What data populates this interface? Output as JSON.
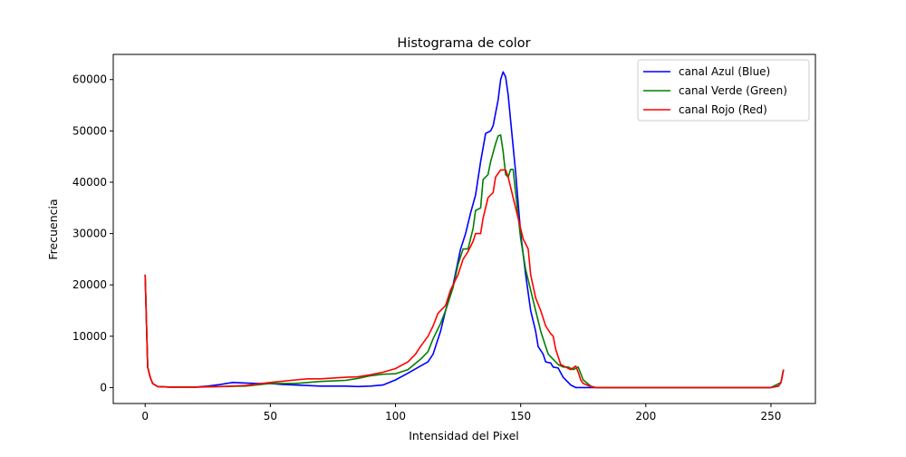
{
  "chart_data": {
    "type": "line",
    "title": "Histograma de color",
    "xlabel": "Intensidad del Pixel",
    "ylabel": "Frecuencia",
    "xlim": [
      -12.75,
      267.75
    ],
    "ylim": [
      -3100,
      64900
    ],
    "xticks": [
      0,
      50,
      100,
      150,
      200,
      250
    ],
    "yticks": [
      0,
      10000,
      20000,
      30000,
      40000,
      50000,
      60000
    ],
    "grid": false,
    "legend_position": "top-right",
    "series": [
      {
        "name": "canal Azul (Blue)",
        "color": "#0000ff",
        "points": [
          [
            0,
            22000
          ],
          [
            1,
            4000
          ],
          [
            2,
            2000
          ],
          [
            3,
            800
          ],
          [
            5,
            200
          ],
          [
            10,
            100
          ],
          [
            20,
            100
          ],
          [
            25,
            300
          ],
          [
            30,
            600
          ],
          [
            35,
            1000
          ],
          [
            40,
            900
          ],
          [
            45,
            800
          ],
          [
            50,
            800
          ],
          [
            55,
            600
          ],
          [
            60,
            500
          ],
          [
            65,
            400
          ],
          [
            70,
            300
          ],
          [
            80,
            300
          ],
          [
            85,
            200
          ],
          [
            90,
            300
          ],
          [
            95,
            500
          ],
          [
            100,
            1500
          ],
          [
            105,
            2800
          ],
          [
            110,
            4200
          ],
          [
            113,
            5000
          ],
          [
            115,
            6500
          ],
          [
            118,
            11000
          ],
          [
            120,
            15000
          ],
          [
            123,
            20000
          ],
          [
            126,
            27000
          ],
          [
            128,
            30000
          ],
          [
            130,
            34000
          ],
          [
            132,
            37500
          ],
          [
            134,
            44000
          ],
          [
            136,
            49500
          ],
          [
            138,
            50000
          ],
          [
            139,
            51000
          ],
          [
            141,
            56000
          ],
          [
            142,
            60000
          ],
          [
            143,
            61500
          ],
          [
            144,
            60500
          ],
          [
            145,
            57000
          ],
          [
            146,
            52000
          ],
          [
            148,
            42000
          ],
          [
            150,
            30000
          ],
          [
            152,
            22000
          ],
          [
            154,
            15000
          ],
          [
            156,
            11000
          ],
          [
            157,
            8000
          ],
          [
            159,
            6500
          ],
          [
            160,
            5000
          ],
          [
            162,
            4800
          ],
          [
            163,
            4000
          ],
          [
            165,
            3800
          ],
          [
            167,
            2000
          ],
          [
            170,
            500
          ],
          [
            172,
            0
          ],
          [
            180,
            0
          ],
          [
            250,
            0
          ],
          [
            253,
            300
          ],
          [
            254,
            1000
          ],
          [
            255,
            3500
          ]
        ]
      },
      {
        "name": "canal Verde (Green)",
        "color": "#008000",
        "points": [
          [
            0,
            22000
          ],
          [
            1,
            4000
          ],
          [
            2,
            2000
          ],
          [
            3,
            800
          ],
          [
            5,
            200
          ],
          [
            10,
            100
          ],
          [
            20,
            100
          ],
          [
            30,
            200
          ],
          [
            40,
            300
          ],
          [
            50,
            800
          ],
          [
            60,
            800
          ],
          [
            65,
            1000
          ],
          [
            70,
            1200
          ],
          [
            80,
            1400
          ],
          [
            85,
            1800
          ],
          [
            90,
            2300
          ],
          [
            95,
            2600
          ],
          [
            100,
            2700
          ],
          [
            105,
            3500
          ],
          [
            110,
            5500
          ],
          [
            113,
            7000
          ],
          [
            115,
            9500
          ],
          [
            118,
            12500
          ],
          [
            120,
            15000
          ],
          [
            123,
            19500
          ],
          [
            125,
            24000
          ],
          [
            127,
            27000
          ],
          [
            129,
            27000
          ],
          [
            131,
            31000
          ],
          [
            132,
            34500
          ],
          [
            134,
            35000
          ],
          [
            135,
            40500
          ],
          [
            137,
            41500
          ],
          [
            138,
            44000
          ],
          [
            140,
            47500
          ],
          [
            141,
            49000
          ],
          [
            142,
            49200
          ],
          [
            143,
            46000
          ],
          [
            144,
            41500
          ],
          [
            145,
            41000
          ],
          [
            146,
            42500
          ],
          [
            147,
            42500
          ],
          [
            148,
            38000
          ],
          [
            150,
            29000
          ],
          [
            152,
            23000
          ],
          [
            154,
            19000
          ],
          [
            156,
            15000
          ],
          [
            158,
            11000
          ],
          [
            160,
            8000
          ],
          [
            161,
            6500
          ],
          [
            163,
            5500
          ],
          [
            165,
            4500
          ],
          [
            167,
            4000
          ],
          [
            169,
            4000
          ],
          [
            171,
            3500
          ],
          [
            173,
            4000
          ],
          [
            175,
            1500
          ],
          [
            178,
            300
          ],
          [
            180,
            0
          ],
          [
            250,
            0
          ],
          [
            254,
            1000
          ],
          [
            255,
            3500
          ]
        ]
      },
      {
        "name": "canal Rojo (Red)",
        "color": "#ff0000",
        "points": [
          [
            0,
            22000
          ],
          [
            1,
            4000
          ],
          [
            2,
            2000
          ],
          [
            3,
            800
          ],
          [
            5,
            200
          ],
          [
            10,
            100
          ],
          [
            20,
            100
          ],
          [
            30,
            200
          ],
          [
            40,
            400
          ],
          [
            50,
            1000
          ],
          [
            60,
            1500
          ],
          [
            65,
            1700
          ],
          [
            70,
            1700
          ],
          [
            80,
            2000
          ],
          [
            85,
            2100
          ],
          [
            90,
            2500
          ],
          [
            95,
            3000
          ],
          [
            100,
            3700
          ],
          [
            105,
            5000
          ],
          [
            108,
            6500
          ],
          [
            110,
            8000
          ],
          [
            113,
            10000
          ],
          [
            115,
            12000
          ],
          [
            117,
            14500
          ],
          [
            120,
            16000
          ],
          [
            122,
            19000
          ],
          [
            125,
            22000
          ],
          [
            127,
            25000
          ],
          [
            129,
            26500
          ],
          [
            131,
            28500
          ],
          [
            132,
            30000
          ],
          [
            134,
            30000
          ],
          [
            135,
            33000
          ],
          [
            137,
            37000
          ],
          [
            139,
            38000
          ],
          [
            140,
            41000
          ],
          [
            142,
            42400
          ],
          [
            144,
            42400
          ],
          [
            145,
            41000
          ],
          [
            147,
            37000
          ],
          [
            149,
            33000
          ],
          [
            151,
            29000
          ],
          [
            152,
            28000
          ],
          [
            153,
            27000
          ],
          [
            154,
            22000
          ],
          [
            156,
            17500
          ],
          [
            158,
            15000
          ],
          [
            160,
            12000
          ],
          [
            162,
            10500
          ],
          [
            163,
            10000
          ],
          [
            164,
            7500
          ],
          [
            165,
            6000
          ],
          [
            166,
            4500
          ],
          [
            168,
            4000
          ],
          [
            170,
            3500
          ],
          [
            172,
            4200
          ],
          [
            173,
            3000
          ],
          [
            174,
            1500
          ],
          [
            175,
            800
          ],
          [
            178,
            200
          ],
          [
            180,
            0
          ],
          [
            250,
            0
          ],
          [
            253,
            300
          ],
          [
            254,
            1000
          ],
          [
            255,
            3500
          ]
        ]
      }
    ]
  }
}
